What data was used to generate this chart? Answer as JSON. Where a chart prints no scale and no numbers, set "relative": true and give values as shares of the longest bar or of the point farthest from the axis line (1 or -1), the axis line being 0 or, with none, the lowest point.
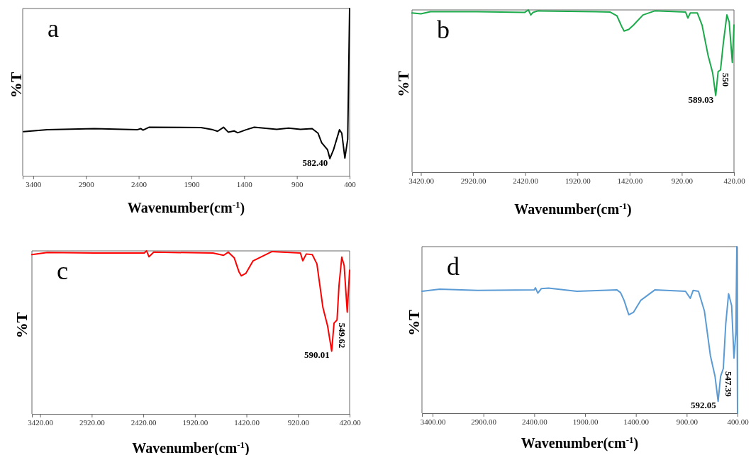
{
  "chart_data": [
    {
      "type": "line",
      "title": "a",
      "xlabel": "Wavenumber(cm$^{-1}$)",
      "ylabel": "%T",
      "relative": true,
      "xlim": [
        3500,
        400
      ],
      "xticks": [
        3400,
        2900,
        2400,
        1900,
        1400,
        900,
        400
      ],
      "series": [
        {
          "color": "#000000",
          "x": [
            3492,
            3268,
            2819,
            2415,
            2381,
            2359,
            2303,
            1809,
            1697,
            1652,
            1596,
            1551,
            1495,
            1461,
            1383,
            1304,
            1091,
            979,
            867,
            755,
            699,
            665,
            609,
            587,
            553,
            496,
            474,
            445,
            418,
            400
          ],
          "values": [
            0.264,
            0.275,
            0.282,
            0.275,
            0.282,
            0.273,
            0.29,
            0.288,
            0.275,
            0.266,
            0.29,
            0.261,
            0.268,
            0.257,
            0.275,
            0.29,
            0.278,
            0.285,
            0.278,
            0.282,
            0.254,
            0.198,
            0.155,
            0.103,
            0.155,
            0.275,
            0.254,
            0.106,
            0.219,
            1.0
          ]
        }
      ],
      "annotations": [
        {
          "text": "582.40",
          "x": 587,
          "y": 0.103
        }
      ]
    },
    {
      "type": "line",
      "title": "b",
      "xlabel": "Wavenumber(cm$^{-1}$)",
      "ylabel": "%T",
      "relative": true,
      "xlim": [
        3505,
        420
      ],
      "xticks": [
        {
          "value": 3420,
          "label": "3420.00"
        },
        {
          "value": 2920,
          "label": "2920.00"
        },
        {
          "value": 2420,
          "label": "2420.00"
        },
        {
          "value": 1920,
          "label": "1920.00"
        },
        {
          "value": 1420,
          "label": "1420.00"
        },
        {
          "value": 920,
          "label": "920.00"
        },
        {
          "value": 420,
          "label": "420.00"
        }
      ],
      "series": [
        {
          "color": "#1aaa4a",
          "x": [
            3505,
            3420,
            3329,
            2877,
            2424,
            2390,
            2367,
            2345,
            2299,
            1745,
            1609,
            1541,
            1496,
            1473,
            1428,
            1382,
            1292,
            1179,
            884,
            862,
            839,
            771,
            726,
            669,
            624,
            595,
            572,
            549,
            522,
            488,
            466,
            436,
            420
          ],
          "values": [
            0.981,
            0.976,
            0.989,
            0.989,
            0.985,
            1.0,
            0.969,
            0.985,
            0.994,
            0.989,
            0.987,
            0.963,
            0.898,
            0.87,
            0.88,
            0.907,
            0.969,
            0.994,
            0.987,
            0.95,
            0.981,
            0.981,
            0.907,
            0.722,
            0.611,
            0.472,
            0.62,
            0.63,
            0.796,
            0.969,
            0.926,
            0.676,
            0.907
          ]
        }
      ],
      "annotations": [
        {
          "text": "589.03",
          "x": 595,
          "y": 0.472
        },
        {
          "text": "550",
          "x": 549,
          "y": 0.63
        }
      ]
    },
    {
      "type": "line",
      "title": "c",
      "xlabel": "Wavenumber(cm$^{-1}$)",
      "ylabel": "%T",
      "relative": true,
      "xlim": [
        3500,
        420
      ],
      "xticks": [
        {
          "value": 3420,
          "label": "3420.00"
        },
        {
          "value": 2920,
          "label": "2920.00"
        },
        {
          "value": 2420,
          "label": "2420.00"
        },
        {
          "value": 1920,
          "label": "1920.00"
        },
        {
          "value": 1420,
          "label": "1420.00"
        },
        {
          "value": 920,
          "label": "920.00"
        },
        {
          "value": 420,
          "label": "420.00"
        }
      ],
      "series": [
        {
          "color": "#ff0000",
          "x": [
            3500,
            3351,
            2892,
            2411,
            2388,
            2365,
            2319,
            1746,
            1642,
            1597,
            1539,
            1493,
            1470,
            1425,
            1356,
            1172,
            897,
            874,
            840,
            782,
            737,
            679,
            633,
            594,
            571,
            542,
            523,
            496,
            473,
            443,
            420
          ],
          "values": [
            0.977,
            0.99,
            0.987,
            0.987,
            1.0,
            0.964,
            0.992,
            0.987,
            0.973,
            0.992,
            0.958,
            0.872,
            0.847,
            0.863,
            0.939,
            0.996,
            0.987,
            0.939,
            0.981,
            0.977,
            0.92,
            0.653,
            0.538,
            0.385,
            0.557,
            0.576,
            0.786,
            0.962,
            0.91,
            0.624,
            0.882
          ]
        }
      ],
      "annotations": [
        {
          "text": "590.01",
          "x": 594,
          "y": 0.385
        },
        {
          "text": "549.62",
          "x": 542,
          "y": 0.576
        }
      ]
    },
    {
      "type": "line",
      "title": "d",
      "xlabel": "Wavenumber(cm$^{-1}$)",
      "ylabel": "%T",
      "relative": true,
      "xlim": [
        3505,
        400
      ],
      "xticks": [
        {
          "value": 3400,
          "label": "3400.00"
        },
        {
          "value": 2900,
          "label": "2900.00"
        },
        {
          "value": 2400,
          "label": "2400.00"
        },
        {
          "value": 1900,
          "label": "1900.00"
        },
        {
          "value": 1400,
          "label": "1400.00"
        },
        {
          "value": 900,
          "label": "900.00"
        },
        {
          "value": 400,
          "label": "400.00"
        }
      ],
      "series": [
        {
          "color": "#5b9bd5",
          "x": [
            3505,
            3330,
            2958,
            2400,
            2388,
            2365,
            2330,
            2260,
            1981,
            1586,
            1551,
            1516,
            1470,
            1423,
            1353,
            1214,
            912,
            865,
            837,
            784,
            726,
            667,
            621,
            591,
            567,
            540,
            516,
            488,
            458,
            435,
            416,
            407,
            400
          ],
          "values": [
            0.732,
            0.745,
            0.737,
            0.74,
            0.753,
            0.721,
            0.748,
            0.751,
            0.732,
            0.74,
            0.724,
            0.677,
            0.591,
            0.606,
            0.677,
            0.74,
            0.732,
            0.69,
            0.737,
            0.732,
            0.614,
            0.346,
            0.22,
            0.071,
            0.22,
            0.268,
            0.535,
            0.717,
            0.646,
            0.331,
            0.488,
            1.0,
            0
          ]
        }
      ],
      "annotations": [
        {
          "text": "592.05",
          "x": 591,
          "y": 0.071
        },
        {
          "text": "547.39",
          "x": 540,
          "y": 0.268
        }
      ]
    }
  ]
}
